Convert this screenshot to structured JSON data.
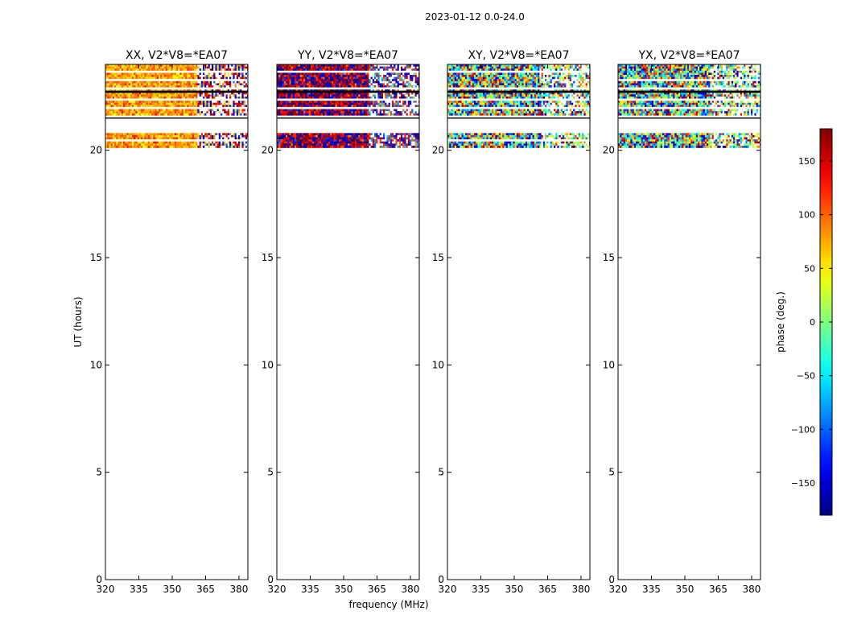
{
  "chart_data": {
    "type": "heatmap",
    "suptitle": "2023-01-12 0.0-24.0",
    "xlabel": "frequency (MHz)",
    "ylabel": "UT (hours)",
    "xlim": [
      320,
      384
    ],
    "ylim": [
      0,
      24
    ],
    "xticks": [
      320,
      335,
      350,
      365,
      380
    ],
    "yticks": [
      0,
      5,
      10,
      15,
      20
    ],
    "panels": [
      {
        "title": "XX, V2*V8=*EA07",
        "product": "XX",
        "mean_phase_low_freq": 80,
        "mean_phase_high_freq": 150,
        "break_freq": 361,
        "scatter": 40
      },
      {
        "title": "YY, V2*V8=*EA07",
        "product": "YY",
        "mean_phase_low_freq": 170,
        "mean_phase_high_freq": -160,
        "break_freq": 361,
        "scatter": 60
      },
      {
        "title": "XY, V2*V8=*EA07",
        "product": "XY",
        "mean_phase_low_freq": 0,
        "mean_phase_high_freq": 0,
        "break_freq": 361,
        "scatter": 180
      },
      {
        "title": "YX, V2*V8=*EA07",
        "product": "YX",
        "mean_phase_low_freq": 0,
        "mean_phase_high_freq": 0,
        "break_freq": 361,
        "scatter": 180
      }
    ],
    "data_time_ranges_hours": [
      [
        20.2,
        20.8
      ],
      [
        21.7,
        22.7
      ],
      [
        22.8,
        24.0
      ]
    ],
    "colorbar": {
      "label": "phase (deg.)",
      "range": [
        -180,
        180
      ],
      "ticks": [
        150,
        100,
        50,
        0,
        -50,
        -100,
        -150
      ],
      "tick_labels": [
        "150",
        "100",
        "50",
        "0",
        "−50",
        "−100",
        "−150"
      ],
      "colormap": "jet"
    }
  }
}
